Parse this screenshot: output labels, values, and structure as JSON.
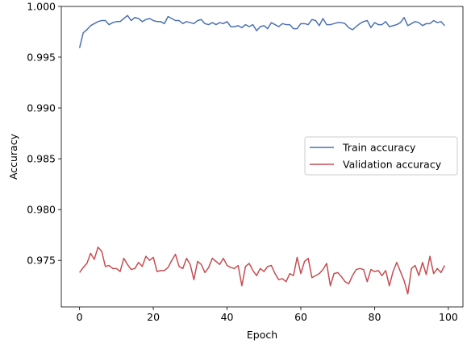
{
  "chart_data": {
    "type": "line",
    "title": "",
    "xlabel": "Epoch",
    "ylabel": "Accuracy",
    "xlim": [
      -4.95,
      103.95
    ],
    "ylim": [
      0.97042,
      0.99999
    ],
    "x_ticks": [
      0,
      20,
      40,
      60,
      80,
      100
    ],
    "x_tick_labels": [
      "0",
      "20",
      "40",
      "60",
      "80",
      "100"
    ],
    "y_ticks": [
      0.975,
      0.98,
      0.985,
      0.99,
      0.995,
      1.0
    ],
    "y_tick_labels": [
      "0.975",
      "0.980",
      "0.985",
      "0.990",
      "0.995",
      "1.000"
    ],
    "grid": false,
    "legend_position": "right",
    "x": [
      0,
      1,
      2,
      3,
      4,
      5,
      6,
      7,
      8,
      9,
      10,
      11,
      12,
      13,
      14,
      15,
      16,
      17,
      18,
      19,
      20,
      21,
      22,
      23,
      24,
      25,
      26,
      27,
      28,
      29,
      30,
      31,
      32,
      33,
      34,
      35,
      36,
      37,
      38,
      39,
      40,
      41,
      42,
      43,
      44,
      45,
      46,
      47,
      48,
      49,
      50,
      51,
      52,
      53,
      54,
      55,
      56,
      57,
      58,
      59,
      60,
      61,
      62,
      63,
      64,
      65,
      66,
      67,
      68,
      69,
      70,
      71,
      72,
      73,
      74,
      75,
      76,
      77,
      78,
      79,
      80,
      81,
      82,
      83,
      84,
      85,
      86,
      87,
      88,
      89,
      90,
      91,
      92,
      93,
      94,
      95,
      96,
      97,
      98,
      99
    ],
    "series": [
      {
        "name": "Train accuracy",
        "color": "#4c72b0",
        "values": [
          0.9959,
          0.9974,
          0.9977,
          0.9981,
          0.9983,
          0.9985,
          0.9986,
          0.9986,
          0.9982,
          0.9984,
          0.9985,
          0.9985,
          0.9988,
          0.9991,
          0.9986,
          0.9989,
          0.9988,
          0.9985,
          0.9987,
          0.9988,
          0.9986,
          0.9985,
          0.9985,
          0.9983,
          0.999,
          0.9988,
          0.9986,
          0.9986,
          0.9983,
          0.9985,
          0.9984,
          0.9983,
          0.9986,
          0.9987,
          0.9983,
          0.9982,
          0.9984,
          0.9982,
          0.9984,
          0.9983,
          0.9985,
          0.998,
          0.998,
          0.9981,
          0.9979,
          0.9982,
          0.998,
          0.9982,
          0.9976,
          0.998,
          0.9981,
          0.9978,
          0.9984,
          0.9982,
          0.998,
          0.9983,
          0.9982,
          0.9982,
          0.9978,
          0.9978,
          0.9983,
          0.9983,
          0.9982,
          0.9987,
          0.9986,
          0.9981,
          0.9988,
          0.9982,
          0.9982,
          0.9983,
          0.9984,
          0.9984,
          0.9983,
          0.9979,
          0.9977,
          0.998,
          0.9983,
          0.9985,
          0.9986,
          0.9979,
          0.9984,
          0.9982,
          0.9982,
          0.9985,
          0.998,
          0.9981,
          0.9982,
          0.9984,
          0.9989,
          0.9981,
          0.9983,
          0.9985,
          0.9984,
          0.9981,
          0.9983,
          0.9983,
          0.9986,
          0.9984,
          0.9985,
          0.9981
        ]
      },
      {
        "name": "Validation accuracy",
        "color": "#c44e52",
        "values": [
          0.9738,
          0.9743,
          0.9747,
          0.9757,
          0.9751,
          0.9763,
          0.9759,
          0.9744,
          0.9745,
          0.9742,
          0.9742,
          0.9739,
          0.9752,
          0.9746,
          0.9741,
          0.9742,
          0.9748,
          0.9744,
          0.9754,
          0.975,
          0.9753,
          0.9739,
          0.974,
          0.974,
          0.9743,
          0.975,
          0.9756,
          0.9744,
          0.9742,
          0.9752,
          0.9746,
          0.9731,
          0.9749,
          0.9746,
          0.9738,
          0.9743,
          0.9752,
          0.9749,
          0.9746,
          0.9752,
          0.9745,
          0.9743,
          0.9742,
          0.9745,
          0.9725,
          0.9744,
          0.9747,
          0.974,
          0.9735,
          0.9742,
          0.9739,
          0.9744,
          0.9745,
          0.9737,
          0.9731,
          0.9732,
          0.9729,
          0.9737,
          0.9735,
          0.9753,
          0.9737,
          0.9749,
          0.9752,
          0.9733,
          0.9735,
          0.9737,
          0.9741,
          0.9747,
          0.9725,
          0.9737,
          0.9738,
          0.9734,
          0.9729,
          0.9727,
          0.9735,
          0.9741,
          0.9742,
          0.9741,
          0.9729,
          0.9741,
          0.9739,
          0.974,
          0.9735,
          0.974,
          0.9725,
          0.9739,
          0.9748,
          0.9739,
          0.973,
          0.9717,
          0.9742,
          0.9745,
          0.9735,
          0.9748,
          0.9736,
          0.9754,
          0.9737,
          0.9742,
          0.9738,
          0.9745
        ]
      }
    ]
  }
}
